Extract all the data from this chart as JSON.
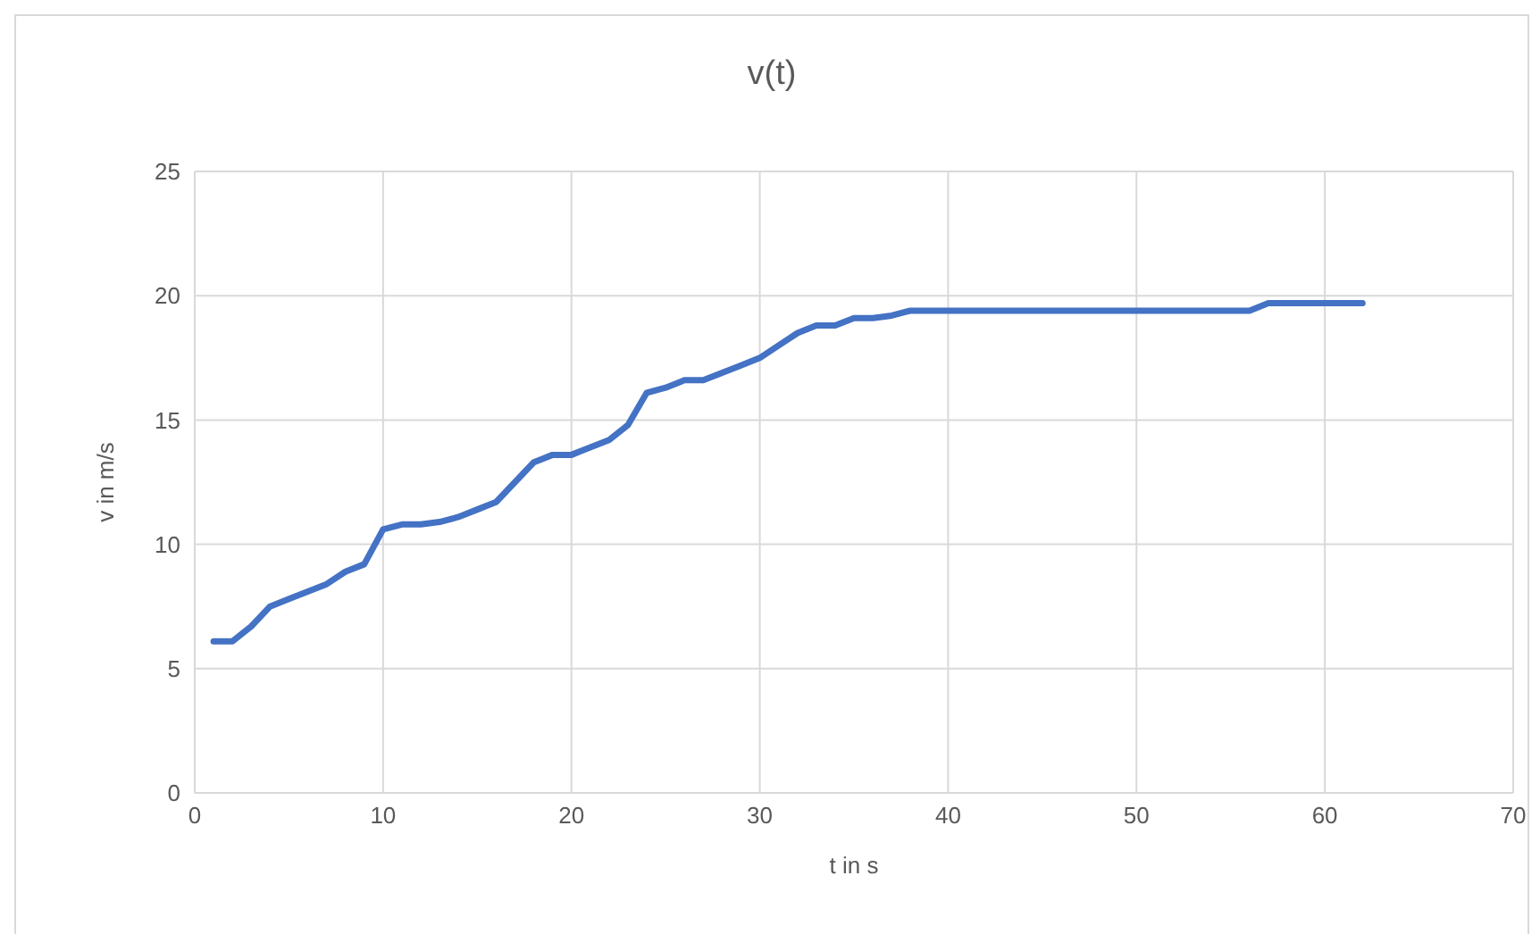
{
  "chart_data": {
    "type": "line",
    "title": "v(t)",
    "xlabel": "t in s",
    "ylabel": "v in m/s",
    "x": [
      1,
      2,
      3,
      4,
      5,
      6,
      7,
      8,
      9,
      10,
      11,
      12,
      13,
      14,
      15,
      16,
      17,
      18,
      19,
      20,
      21,
      22,
      23,
      24,
      25,
      26,
      27,
      28,
      29,
      30,
      31,
      32,
      33,
      34,
      35,
      36,
      37,
      38,
      56,
      57,
      62
    ],
    "series": [
      {
        "color": "#4472c4",
        "values": [
          6.1,
          6.1,
          6.7,
          7.5,
          7.8,
          8.1,
          8.4,
          8.9,
          9.2,
          10.6,
          10.8,
          10.8,
          10.9,
          11.1,
          11.4,
          11.7,
          12.5,
          13.3,
          13.6,
          13.6,
          13.9,
          14.2,
          14.8,
          16.1,
          16.3,
          16.6,
          16.6,
          16.9,
          17.2,
          17.5,
          18.0,
          18.5,
          18.8,
          18.8,
          19.1,
          19.1,
          19.2,
          19.4,
          19.4,
          19.7,
          19.7
        ]
      }
    ],
    "xlim": [
      0,
      70
    ],
    "xticks": [
      0,
      10,
      20,
      30,
      40,
      50,
      60,
      70
    ],
    "ylim": [
      0,
      25
    ],
    "yticks": [
      0,
      5,
      10,
      15,
      20,
      25
    ],
    "grid": true,
    "legend": false,
    "marker": "none",
    "line_style": "solid"
  }
}
